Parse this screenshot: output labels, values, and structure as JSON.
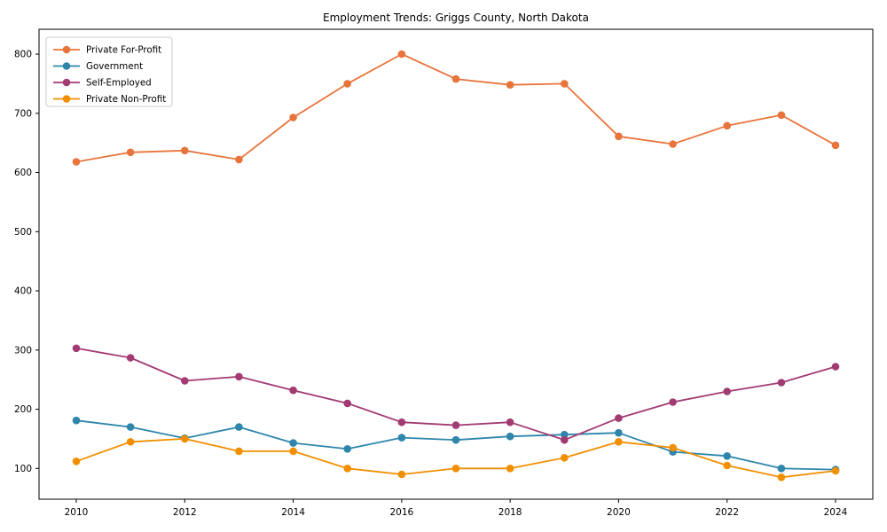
{
  "chart_data": {
    "type": "line",
    "title": "Employment Trends: Griggs County, North Dakota",
    "xlabel": "",
    "ylabel": "",
    "x": [
      2010,
      2011,
      2012,
      2013,
      2014,
      2015,
      2016,
      2017,
      2018,
      2019,
      2020,
      2021,
      2022,
      2023,
      2024
    ],
    "series": [
      {
        "name": "Private For-Profit",
        "color": "#E8743B",
        "values": [
          618,
          634,
          637,
          622,
          693,
          750,
          800,
          758,
          748,
          750,
          661,
          648,
          679,
          697,
          646
        ]
      },
      {
        "name": "Government",
        "color": "#2E86AB",
        "values": [
          181,
          170,
          151,
          170,
          143,
          133,
          152,
          148,
          154,
          157,
          160,
          128,
          121,
          100,
          98
        ]
      },
      {
        "name": "Self-Employed",
        "color": "#A23B72",
        "values": [
          303,
          287,
          248,
          255,
          232,
          210,
          178,
          173,
          178,
          148,
          185,
          212,
          230,
          245,
          272
        ]
      },
      {
        "name": "Private Non-Profit",
        "color": "#F18F01",
        "values": [
          112,
          145,
          150,
          129,
          129,
          100,
          90,
          100,
          100,
          118,
          145,
          135,
          105,
          85,
          96
        ]
      }
    ],
    "yticks": [
      100,
      200,
      300,
      400,
      500,
      600,
      700,
      800
    ],
    "xticks": [
      2010,
      2012,
      2014,
      2016,
      2018,
      2020,
      2022,
      2024
    ],
    "ylim": [
      48,
      842
    ],
    "grid": false,
    "legend_position": "upper left",
    "axis_color": "#000000",
    "legend_border_color": "#cccccc",
    "background_color": "#ffffff"
  }
}
